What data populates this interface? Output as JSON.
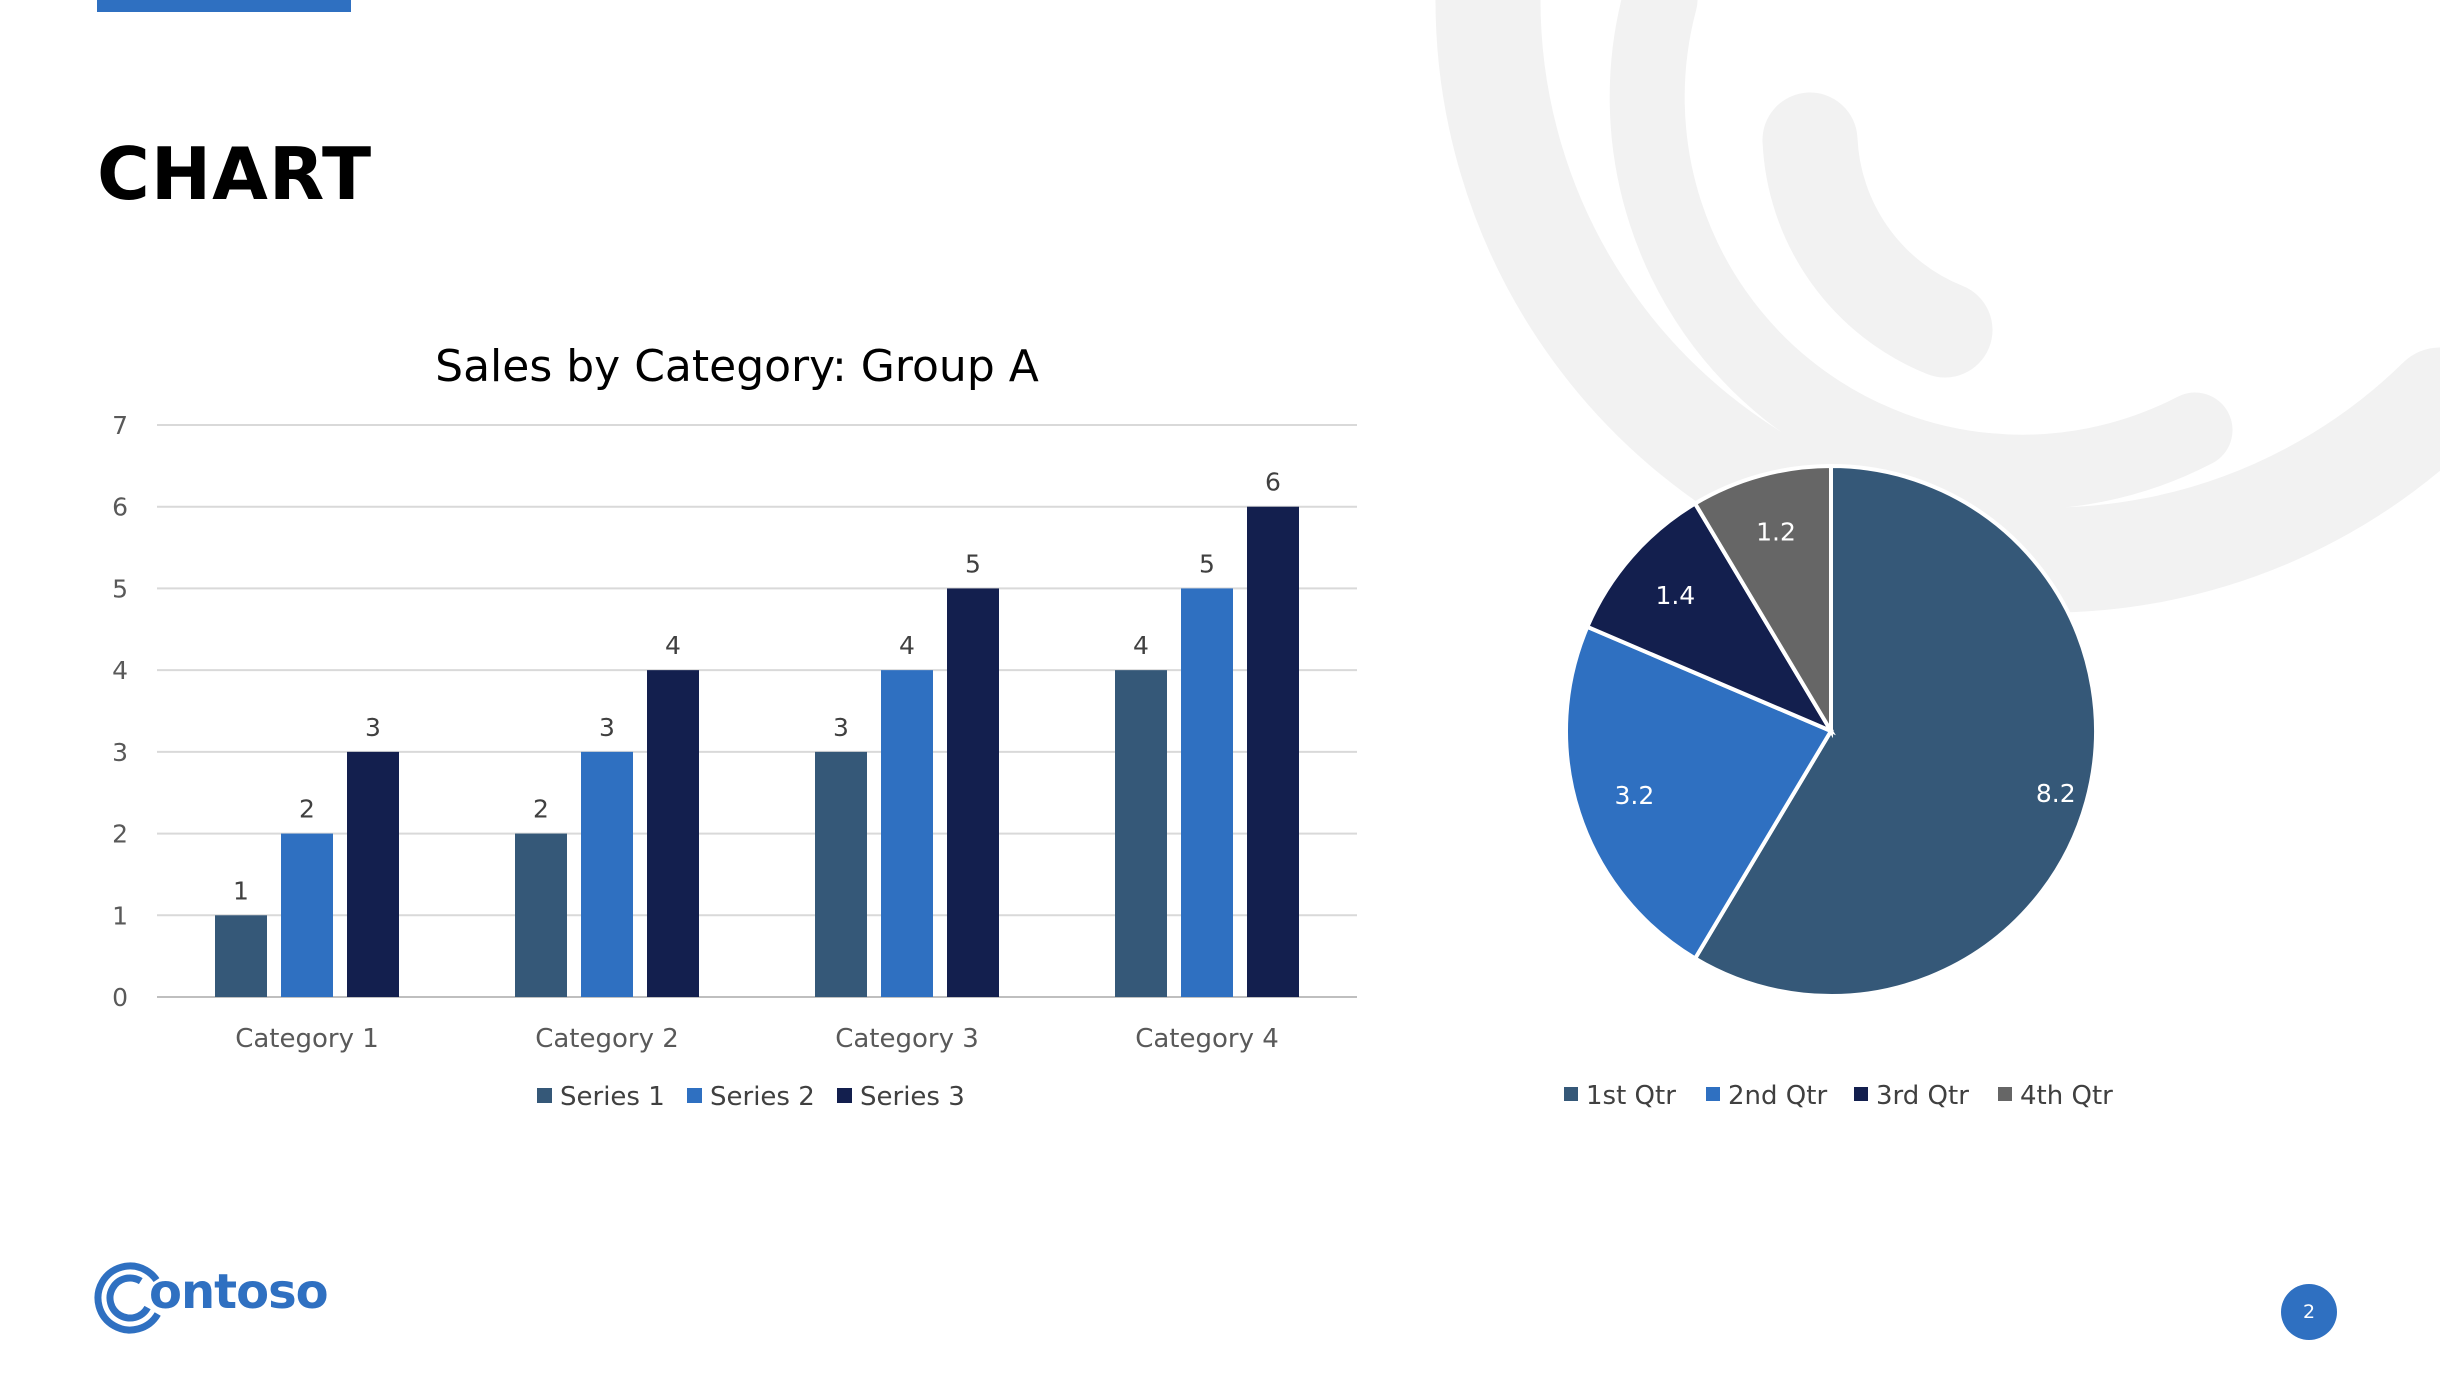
{
  "slide": {
    "title": "CHART",
    "page_number": "2",
    "logo_text": "ontoso",
    "accent_color": "#2f70c1"
  },
  "chart_data": [
    {
      "type": "bar",
      "title": "Sales by Category: Group A",
      "categories": [
        "Category 1",
        "Category 2",
        "Category 3",
        "Category 4"
      ],
      "series": [
        {
          "name": "Series 1",
          "values": [
            1,
            2,
            3,
            4
          ],
          "color": "#355878"
        },
        {
          "name": "Series 2",
          "values": [
            2,
            3,
            4,
            5
          ],
          "color": "#2f70c1"
        },
        {
          "name": "Series 3",
          "values": [
            3,
            4,
            5,
            6
          ],
          "color": "#131f4e"
        }
      ],
      "ylim": [
        0,
        7
      ],
      "yticks": [
        0,
        1,
        2,
        3,
        4,
        5,
        6,
        7
      ],
      "grid": true,
      "legend": "bottom",
      "data_labels": true
    },
    {
      "type": "pie",
      "labels": [
        "1st Qtr",
        "2nd Qtr",
        "3rd Qtr",
        "4th Qtr"
      ],
      "values": [
        8.2,
        3.2,
        1.4,
        1.2
      ],
      "colors": [
        "#355878",
        "#2f70c1",
        "#131f4e",
        "#666666"
      ],
      "legend": "bottom",
      "data_labels": true
    }
  ]
}
